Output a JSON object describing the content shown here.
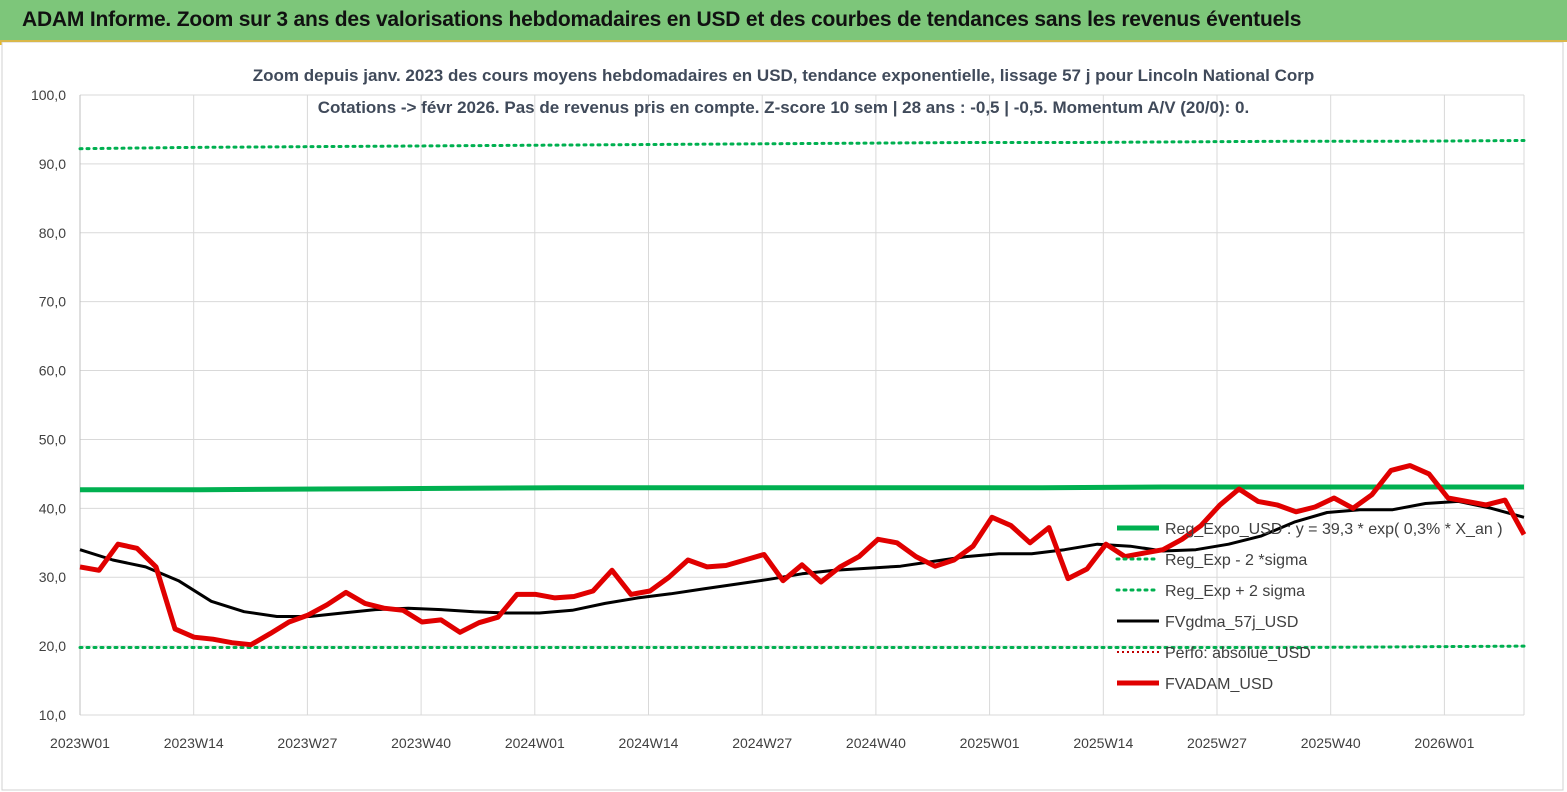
{
  "header": {
    "title": "ADAM Informe. Zoom sur 3 ans des valorisations hebdomadaires en USD et des courbes de tendances sans les revenus éventuels"
  },
  "chart_data": {
    "type": "line",
    "title_line1": "Zoom depuis janv. 2023 des cours moyens hebdomadaires en USD, tendance exponentielle, lissage 57 j pour Lincoln National Corp",
    "title_line2": "Cotations -> févr 2026.  Pas de revenus pris en compte. Z-score 10 sem  | 28 ans : -0,5 | -0,5. Momentum A/V (20/0): 0.",
    "xlabel": "",
    "ylabel": "",
    "ylim": [
      10,
      100
    ],
    "y_ticks": [
      "100,0",
      "90,0",
      "80,0",
      "70,0",
      "60,0",
      "50,0",
      "40,0",
      "30,0",
      "20,0",
      "10,0"
    ],
    "x_ticks": [
      "2023W01",
      "2023W14",
      "2023W27",
      "2023W40",
      "2024W01",
      "2024W14",
      "2024W27",
      "2024W40",
      "2025W01",
      "2025W14",
      "2025W27",
      "2025W40",
      "2026W01"
    ],
    "x_weeks_total": 164,
    "grid": true,
    "legend_position": "right",
    "colors": {
      "reg_expo": "#00b050",
      "sigma_bands": "#00b050",
      "fvgdma": "#000000",
      "perfo": "#c00000",
      "fvadam": "#e00000"
    },
    "series": [
      {
        "name": "Reg_Expo_USD : y = 39,3 * exp( 0,3% *  X_an )",
        "style": "thick-solid",
        "values": [
          42.7,
          42.7,
          42.8,
          42.9,
          43.0,
          43.0,
          43.0,
          43.0,
          43.0,
          43.1,
          43.1,
          43.1,
          43.1
        ]
      },
      {
        "name": "Reg_Exp - 2 *sigma",
        "style": "dotted",
        "values": [
          19.8,
          19.8,
          19.8,
          19.8,
          19.8,
          19.8,
          19.8,
          19.8,
          19.8,
          19.8,
          19.8,
          19.8,
          19.9,
          20.0
        ]
      },
      {
        "name": "Reg_Exp + 2 sigma",
        "style": "dotted",
        "values": [
          92.2,
          92.4,
          92.5,
          92.6,
          92.7,
          92.8,
          92.9,
          93.0,
          93.1,
          93.1,
          93.2,
          93.3,
          93.3,
          93.4
        ]
      },
      {
        "name": "FVgdma_57j_USD",
        "style": "solid",
        "values": [
          34.0,
          32.5,
          31.5,
          29.5,
          26.5,
          25.0,
          24.3,
          24.3,
          24.8,
          25.3,
          25.5,
          25.3,
          25.0,
          24.8,
          24.8,
          25.2,
          26.2,
          27.0,
          27.6,
          28.3,
          29.0,
          29.7,
          30.5,
          31.0,
          31.3,
          31.6,
          32.3,
          33.0,
          33.4,
          33.4,
          34.0,
          34.8,
          34.5,
          33.8,
          34.0,
          34.8,
          36.0,
          38.0,
          39.4,
          39.8,
          39.8,
          40.7,
          41.0,
          40.0,
          38.7
        ]
      },
      {
        "name": "Perfo: absolue_USD",
        "style": "dotted-red",
        "values": []
      },
      {
        "name": "FVADAM_USD",
        "style": "thick-solid",
        "values": [
          31.5,
          31.0,
          34.8,
          34.2,
          31.5,
          22.5,
          21.3,
          21.0,
          20.5,
          20.2,
          21.8,
          23.5,
          24.5,
          26.0,
          27.8,
          26.2,
          25.5,
          25.2,
          23.5,
          23.8,
          22.0,
          23.4,
          24.2,
          27.5,
          27.5,
          27.0,
          27.2,
          28.0,
          31.0,
          27.5,
          28.0,
          30.0,
          32.5,
          31.5,
          31.7,
          32.5,
          33.3,
          29.5,
          31.8,
          29.3,
          31.5,
          33.0,
          35.5,
          35.0,
          33.0,
          31.6,
          32.5,
          34.5,
          38.7,
          37.5,
          35.0,
          37.2,
          29.8,
          31.2,
          34.8,
          33.0,
          33.5,
          34.0,
          35.5,
          37.5,
          40.5,
          42.8,
          41.0,
          40.5,
          39.5,
          40.2,
          41.5,
          40.0,
          42.0,
          45.5,
          46.2,
          45.0,
          41.5,
          41.0,
          40.5,
          41.2,
          36.2
        ]
      }
    ]
  }
}
